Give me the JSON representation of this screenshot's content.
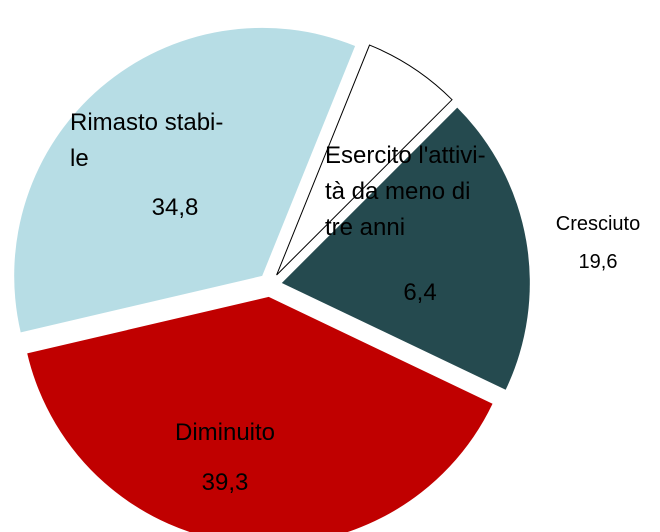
{
  "chart_data": {
    "type": "pie",
    "categories": [
      "Esercito l'attivi-\ntà da meno di\ntre anni",
      "Cresciuto",
      "Diminuito",
      "Rimasto stabi-\nle"
    ],
    "values": [
      6.4,
      19.6,
      39.3,
      34.8
    ],
    "value_labels": [
      "6,4",
      "19,6",
      "39,3",
      "34,8"
    ],
    "colors": [
      "#ffffff",
      "#254a4f",
      "#c00000",
      "#b7dde5"
    ]
  }
}
